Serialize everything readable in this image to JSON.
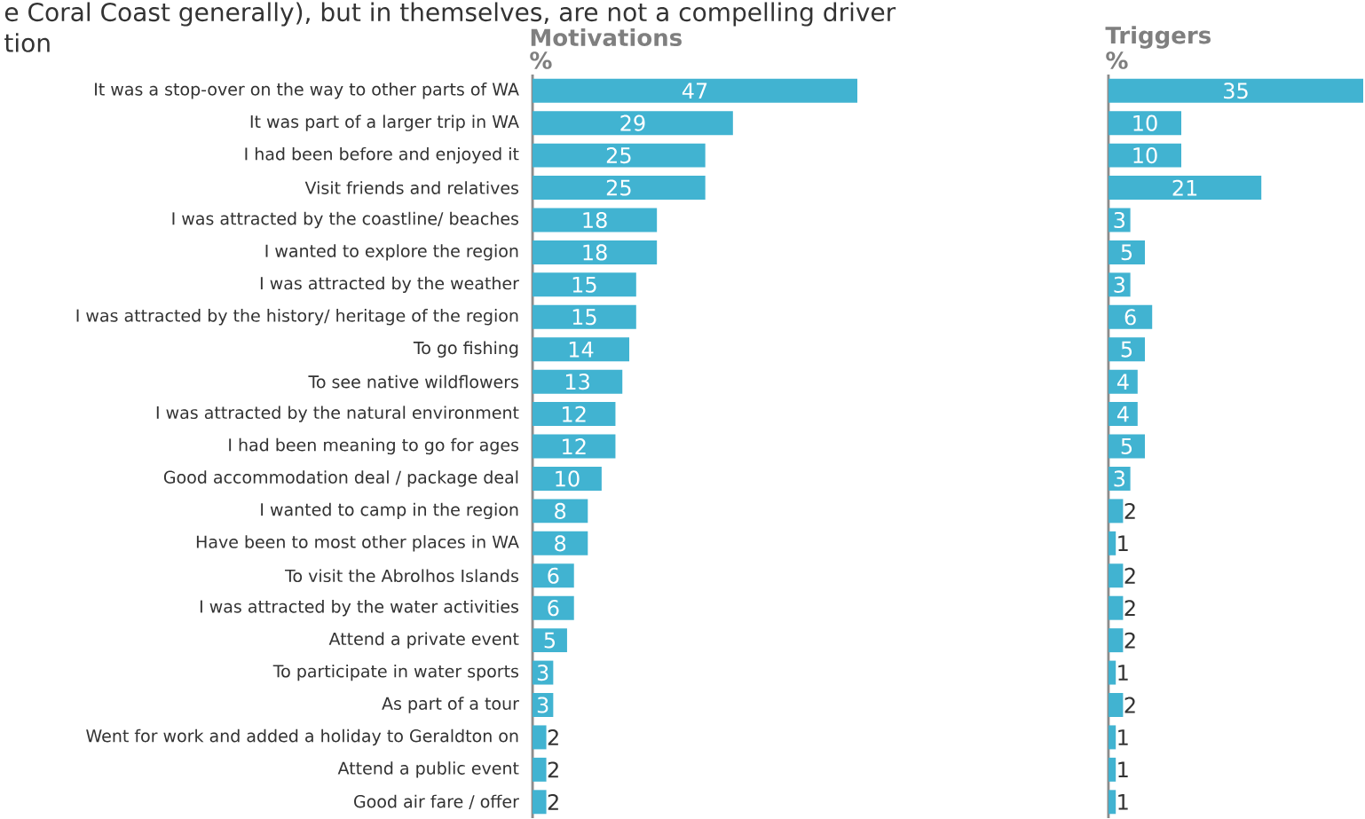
{
  "chart_data": [
    {
      "type": "bar",
      "orientation": "horizontal",
      "title": "Motivations",
      "subtitle": "%",
      "color": "#41b3d1",
      "data_labels": true,
      "annotations": [
        "e Coral Coast generally), but in themselves, are not a compelling driver",
        "tion"
      ],
      "categories": [
        "It was a stop-over on the way to other parts of WA",
        "It was part of a larger trip in WA",
        "I had been before and enjoyed it",
        "Visit friends and relatives",
        "I was attracted by the coastline/ beaches",
        "I wanted to explore the region",
        "I was attracted by the weather",
        "I was attracted by the history/ heritage of the region",
        "To go fishing",
        "To see native wildflowers",
        "I was attracted by the natural environment",
        "I had been meaning to go for ages",
        "Good accommodation deal / package deal",
        "I wanted to camp in the region",
        "Have been to most other places in WA",
        "To visit the Abrolhos Islands",
        "I was attracted by the water activities",
        "Attend a private event",
        "To participate in water sports",
        "As part of a tour",
        "Went for work and added a holiday to Geraldton on",
        "Attend a public event",
        "Good air fare / offer"
      ],
      "values": [
        47,
        29,
        25,
        25,
        18,
        18,
        15,
        15,
        14,
        13,
        12,
        12,
        10,
        8,
        8,
        6,
        6,
        5,
        3,
        3,
        2,
        2,
        2
      ]
    },
    {
      "type": "bar",
      "orientation": "horizontal",
      "title": "Triggers",
      "subtitle": "%",
      "color": "#41b3d1",
      "data_labels": true,
      "categories": [
        null,
        null,
        null,
        null,
        null,
        null,
        null,
        null,
        null,
        null,
        null,
        null,
        null,
        null,
        null,
        null,
        null,
        null,
        null,
        null,
        null,
        null,
        null
      ],
      "values": [
        35,
        10,
        10,
        21,
        3,
        5,
        3,
        6,
        5,
        4,
        4,
        5,
        3,
        2,
        1,
        2,
        2,
        2,
        1,
        2,
        1,
        1,
        1
      ]
    }
  ]
}
